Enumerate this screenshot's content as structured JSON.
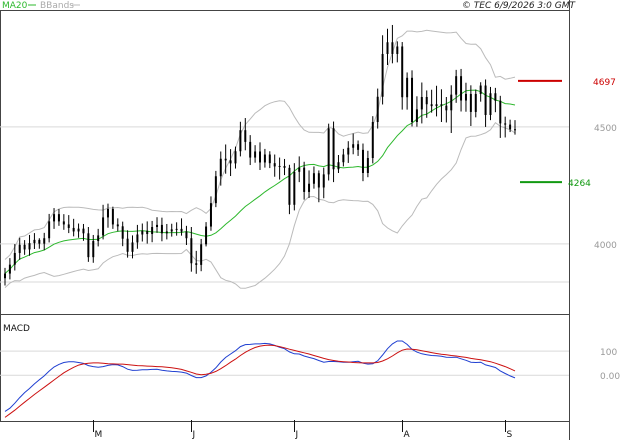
{
  "header": {
    "legend_ma": "MA20",
    "legend_bb": "BBands",
    "copyright": "© TEC 6/9/2026 3:0 GMT"
  },
  "colors": {
    "candle": "#000000",
    "ma": "#2db82d",
    "bands": "#bbbbbb",
    "grid": "#d9d9d9",
    "macd": "#1f3fd1",
    "signal": "#cc1111",
    "resistance": "#cc0000",
    "support": "#119911"
  },
  "chart_data": [
    {
      "type": "candlestick",
      "price_axis": {
        "ylim": [
          3700,
          5000
        ],
        "ticks": [
          4000,
          4500
        ]
      },
      "x_ticks": [
        {
          "index": 18,
          "label": "M"
        },
        {
          "index": 38,
          "label": "J"
        },
        {
          "index": 59,
          "label": "J"
        },
        {
          "index": 81,
          "label": "A"
        },
        {
          "index": 102,
          "label": "S"
        }
      ],
      "levels": [
        {
          "name": "resistance",
          "value": 4697,
          "label": "4697"
        },
        {
          "name": "support",
          "value": 4264,
          "label": "4264"
        }
      ],
      "ohlc": [
        [
          3853,
          3897,
          3822,
          3873
        ],
        [
          3873,
          3939,
          3848,
          3911
        ],
        [
          3911,
          3999,
          3886,
          3961
        ],
        [
          3961,
          4026,
          3932,
          3996
        ],
        [
          3996,
          4016,
          3953,
          3976
        ],
        [
          3976,
          4038,
          3949,
          4003
        ],
        [
          4003,
          4046,
          3978,
          4017
        ],
        [
          4017,
          4024,
          3979,
          4001
        ],
        [
          4001,
          4047,
          3973,
          4024
        ],
        [
          4024,
          4128,
          4006,
          4096
        ],
        [
          4096,
          4153,
          4064,
          4127
        ],
        [
          4127,
          4149,
          4077,
          4096
        ],
        [
          4096,
          4127,
          4060,
          4083
        ],
        [
          4083,
          4123,
          4046,
          4068
        ],
        [
          4068,
          4107,
          4032,
          4053
        ],
        [
          4053,
          4087,
          4026,
          4065
        ],
        [
          4065,
          4085,
          4013,
          4045
        ],
        [
          4045,
          4072,
          3923,
          3943
        ],
        [
          3943,
          4038,
          3919,
          4012
        ],
        [
          4012,
          4064,
          3989,
          4036
        ],
        [
          4036,
          4167,
          4019,
          4113
        ],
        [
          4113,
          4172,
          4069,
          4149
        ],
        [
          4149,
          4159,
          4064,
          4083
        ],
        [
          4083,
          4109,
          4054,
          4075
        ],
        [
          4075,
          4095,
          3990,
          4022
        ],
        [
          4022,
          4058,
          3941,
          3966
        ],
        [
          3966,
          4036,
          3938,
          4006
        ],
        [
          4006,
          4081,
          3979,
          4040
        ],
        [
          4040,
          4087,
          4010,
          4056
        ],
        [
          4056,
          4096,
          4001,
          4042
        ],
        [
          4042,
          4098,
          4007,
          4072
        ],
        [
          4072,
          4114,
          4047,
          4081
        ],
        [
          4081,
          4112,
          4011,
          4045
        ],
        [
          4045,
          4085,
          4019,
          4053
        ],
        [
          4053,
          4086,
          4031,
          4062
        ],
        [
          4062,
          4092,
          4035,
          4064
        ],
        [
          4064,
          4109,
          4035,
          4052
        ],
        [
          4052,
          4077,
          3995,
          4024
        ],
        [
          4024,
          4072,
          3881,
          3917
        ],
        [
          3917,
          3970,
          3872,
          3910
        ],
        [
          3910,
          4021,
          3883,
          3998
        ],
        [
          3998,
          4093,
          3989,
          4074
        ],
        [
          4074,
          4203,
          4056,
          4174
        ],
        [
          4174,
          4312,
          4157,
          4289
        ],
        [
          4289,
          4395,
          4249,
          4364
        ],
        [
          4364,
          4425,
          4300,
          4357
        ],
        [
          4357,
          4405,
          4290,
          4344
        ],
        [
          4344,
          4416,
          4322,
          4396
        ],
        [
          4396,
          4522,
          4374,
          4486
        ],
        [
          4486,
          4538,
          4400,
          4436
        ],
        [
          4436,
          4465,
          4337,
          4369
        ],
        [
          4369,
          4422,
          4347,
          4395
        ],
        [
          4395,
          4434,
          4316,
          4348
        ],
        [
          4348,
          4406,
          4326,
          4382
        ],
        [
          4382,
          4396,
          4324,
          4345
        ],
        [
          4345,
          4382,
          4287,
          4331
        ],
        [
          4331,
          4369,
          4275,
          4333
        ],
        [
          4333,
          4363,
          4294,
          4325
        ],
        [
          4325,
          4338,
          4127,
          4167
        ],
        [
          4167,
          4345,
          4143,
          4308
        ],
        [
          4308,
          4374,
          4264,
          4326
        ],
        [
          4326,
          4351,
          4189,
          4222
        ],
        [
          4222,
          4314,
          4196,
          4257
        ],
        [
          4257,
          4331,
          4236,
          4302
        ],
        [
          4302,
          4314,
          4178,
          4241
        ],
        [
          4241,
          4326,
          4195,
          4297
        ],
        [
          4297,
          4514,
          4271,
          4494
        ],
        [
          4494,
          4523,
          4264,
          4319
        ],
        [
          4319,
          4380,
          4303,
          4349
        ],
        [
          4349,
          4406,
          4331,
          4382
        ],
        [
          4382,
          4439,
          4346,
          4411
        ],
        [
          4411,
          4472,
          4383,
          4426
        ],
        [
          4426,
          4442,
          4376,
          4402
        ],
        [
          4402,
          4429,
          4268,
          4303
        ],
        [
          4303,
          4398,
          4285,
          4367
        ],
        [
          4367,
          4546,
          4344,
          4521
        ],
        [
          4521,
          4664,
          4493,
          4629
        ],
        [
          4629,
          4892,
          4596,
          4812
        ],
        [
          4812,
          4920,
          4765,
          4862
        ],
        [
          4862,
          4936,
          4772,
          4812
        ],
        [
          4812,
          4866,
          4776,
          4844
        ],
        [
          4844,
          4863,
          4574,
          4627
        ],
        [
          4627,
          4733,
          4574,
          4710
        ],
        [
          4710,
          4742,
          4502,
          4521
        ],
        [
          4521,
          4631,
          4501,
          4575
        ],
        [
          4575,
          4690,
          4515,
          4628
        ],
        [
          4628,
          4656,
          4539,
          4597
        ],
        [
          4597,
          4659,
          4561,
          4589
        ],
        [
          4589,
          4676,
          4545,
          4597
        ],
        [
          4597,
          4661,
          4521,
          4591
        ],
        [
          4591,
          4628,
          4519,
          4571
        ],
        [
          4571,
          4678,
          4474,
          4638
        ],
        [
          4638,
          4744,
          4603,
          4717
        ],
        [
          4717,
          4748,
          4566,
          4613
        ],
        [
          4613,
          4689,
          4565,
          4641
        ],
        [
          4641,
          4678,
          4504,
          4564
        ],
        [
          4564,
          4660,
          4541,
          4641
        ],
        [
          4641,
          4691,
          4608,
          4677
        ],
        [
          4677,
          4703,
          4500,
          4551
        ],
        [
          4551,
          4671,
          4529,
          4644
        ],
        [
          4644,
          4667,
          4563,
          4612
        ],
        [
          4612,
          4633,
          4453,
          4515
        ],
        [
          4515,
          4544,
          4455,
          4510
        ],
        [
          4510,
          4531,
          4478,
          4490
        ],
        [
          4490,
          4529,
          4467,
          4489
        ]
      ]
    },
    {
      "type": "line",
      "title": "MACD",
      "ylim": [
        -190,
        250
      ],
      "ticks": [
        {
          "value": 0,
          "label": "0.00"
        },
        {
          "value": 100,
          "label": "100"
        }
      ],
      "series": [
        {
          "name": "MACD",
          "color": "#1f3fd1",
          "values": [
            -150,
            -137,
            -116,
            -93,
            -72,
            -55,
            -36,
            -19,
            -3,
            17,
            34,
            45,
            53,
            56,
            56,
            53,
            49,
            40,
            36,
            33,
            36,
            41,
            44,
            43,
            36,
            25,
            20,
            21,
            23,
            23,
            24,
            25,
            21,
            18,
            16,
            15,
            13,
            9,
            -1,
            -10,
            -10,
            -3,
            12,
            31,
            55,
            74,
            88,
            102,
            119,
            127,
            128,
            130,
            130,
            132,
            130,
            124,
            116,
            110,
            97,
            89,
            88,
            80,
            74,
            69,
            61,
            54,
            57,
            57,
            56,
            54,
            54,
            56,
            58,
            50,
            46,
            48,
            60,
            84,
            110,
            130,
            142,
            142,
            128,
            107,
            96,
            89,
            85,
            82,
            81,
            79,
            75,
            74,
            75,
            68,
            62,
            54,
            53,
            54,
            43,
            38,
            32,
            18,
            7,
            -3,
            -11
          ]
        },
        {
          "name": "Signal",
          "color": "#cc1111",
          "values": [
            -175,
            -160,
            -145,
            -128,
            -112,
            -96,
            -80,
            -65,
            -50,
            -35,
            -20,
            -5,
            10,
            22,
            33,
            42,
            47,
            50,
            51,
            51,
            50,
            48,
            47,
            46,
            46,
            44,
            42,
            40,
            39,
            38,
            37,
            36,
            35,
            33,
            31,
            28,
            24,
            18,
            12,
            5,
            2,
            4,
            8,
            16,
            27,
            40,
            54,
            67,
            82,
            95,
            106,
            115,
            121,
            124,
            125,
            123,
            119,
            114,
            108,
            103,
            98,
            93,
            88,
            82,
            76,
            70,
            65,
            61,
            58,
            56,
            55,
            53,
            52,
            51,
            51,
            51,
            53,
            59,
            68,
            80,
            93,
            104,
            109,
            108,
            106,
            102,
            98,
            94,
            90,
            87,
            85,
            82,
            80,
            77,
            74,
            70,
            67,
            64,
            60,
            56,
            50,
            43,
            36,
            27,
            18
          ]
        }
      ],
      "x_ticks": [
        {
          "index": 18,
          "label": "M"
        },
        {
          "index": 38,
          "label": "J"
        },
        {
          "index": 59,
          "label": "J"
        },
        {
          "index": 81,
          "label": "A"
        },
        {
          "index": 102,
          "label": "S"
        }
      ]
    }
  ]
}
